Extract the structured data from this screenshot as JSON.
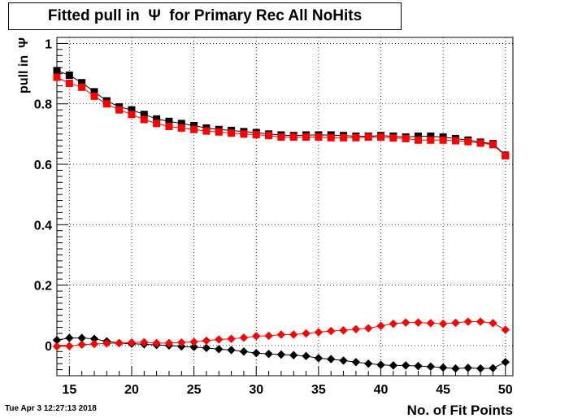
{
  "title": "Fitted pull in  Ψ  for Primary Rec All NoHits",
  "footer": "Tue Apr  3 12:27:13 2018",
  "chart_data": {
    "type": "scatter",
    "title": "Fitted pull in  Ψ  for Primary Rec All NoHits",
    "xlabel": "No. of Fit Points",
    "ylabel": "pull in  Ψ",
    "xlim": [
      14,
      50.6
    ],
    "ylim": [
      -0.1,
      1.02
    ],
    "grid": true,
    "xticks": [
      15,
      20,
      25,
      30,
      35,
      40,
      45,
      50
    ],
    "xtick_labels": [
      "15",
      "20",
      "25",
      "30",
      "35",
      "40",
      "45",
      "50"
    ],
    "yticks": [
      0,
      0.2,
      0.4,
      0.6,
      0.8,
      1
    ],
    "ytick_labels": [
      "0",
      "0.2",
      "0.4",
      "0.6",
      "0.8",
      "1"
    ],
    "x": [
      14,
      15,
      16,
      17,
      18,
      19,
      20,
      21,
      22,
      23,
      24,
      25,
      26,
      27,
      28,
      29,
      30,
      31,
      32,
      33,
      34,
      35,
      36,
      37,
      38,
      39,
      40,
      41,
      42,
      43,
      44,
      45,
      46,
      47,
      48,
      49,
      50
    ],
    "series": [
      {
        "marker": "square",
        "color": "#000000",
        "values": [
          0.91,
          0.895,
          0.87,
          0.84,
          0.81,
          0.79,
          0.78,
          0.765,
          0.75,
          0.742,
          0.735,
          0.728,
          0.72,
          0.715,
          0.712,
          0.708,
          0.705,
          0.7,
          0.697,
          0.695,
          0.697,
          0.697,
          0.697,
          0.695,
          0.693,
          0.693,
          0.695,
          0.693,
          0.69,
          0.693,
          0.693,
          0.69,
          0.685,
          0.68,
          0.673,
          0.668,
          0.63
        ]
      },
      {
        "marker": "square",
        "color": "#ff0000",
        "values": [
          0.888,
          0.868,
          0.855,
          0.825,
          0.8,
          0.78,
          0.765,
          0.748,
          0.735,
          0.725,
          0.72,
          0.715,
          0.71,
          0.707,
          0.703,
          0.7,
          0.698,
          0.695,
          0.69,
          0.69,
          0.69,
          0.69,
          0.688,
          0.688,
          0.688,
          0.69,
          0.69,
          0.687,
          0.685,
          0.68,
          0.68,
          0.68,
          0.678,
          0.675,
          0.67,
          0.665,
          0.628
        ]
      },
      {
        "marker": "diamond",
        "color": "#000000",
        "values": [
          0.018,
          0.025,
          0.025,
          0.022,
          0.014,
          0.008,
          0.006,
          0.004,
          0.002,
          0.0,
          -0.003,
          -0.005,
          -0.008,
          -0.012,
          -0.015,
          -0.02,
          -0.025,
          -0.028,
          -0.03,
          -0.032,
          -0.035,
          -0.042,
          -0.045,
          -0.05,
          -0.055,
          -0.06,
          -0.064,
          -0.066,
          -0.066,
          -0.068,
          -0.07,
          -0.073,
          -0.076,
          -0.074,
          -0.076,
          -0.075,
          -0.055
        ]
      },
      {
        "marker": "diamond",
        "color": "#ff0000",
        "values": [
          -0.003,
          -0.002,
          0.003,
          0.005,
          0.007,
          0.008,
          0.01,
          0.011,
          0.008,
          0.008,
          0.01,
          0.012,
          0.016,
          0.02,
          0.022,
          0.026,
          0.031,
          0.032,
          0.036,
          0.036,
          0.04,
          0.044,
          0.048,
          0.05,
          0.054,
          0.057,
          0.065,
          0.072,
          0.076,
          0.076,
          0.074,
          0.072,
          0.075,
          0.079,
          0.079,
          0.074,
          0.052
        ]
      }
    ]
  },
  "colors": {
    "background": "#ffffff",
    "black_series": "#000000",
    "red_series": "#ff0000"
  }
}
